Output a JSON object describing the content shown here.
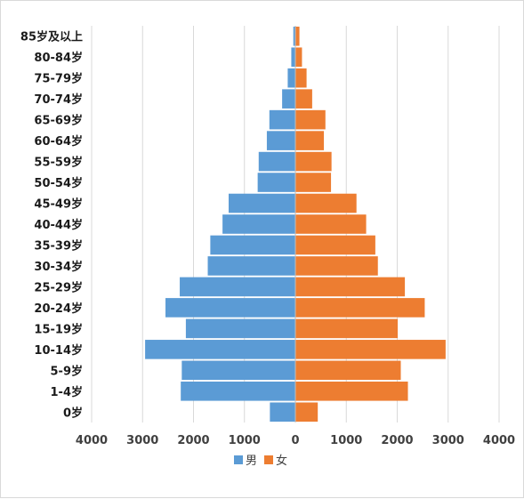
{
  "chart_data": {
    "type": "bar",
    "orientation": "horizontal",
    "categories": [
      "0岁",
      "1-4岁",
      "5-9岁",
      "10-14岁",
      "15-19岁",
      "20-24岁",
      "25-29岁",
      "30-34岁",
      "35-39岁",
      "40-44岁",
      "45-49岁",
      "50-54岁",
      "55-59岁",
      "60-64岁",
      "65-69岁",
      "70-74岁",
      "75-79岁",
      "80-84岁",
      "85岁及以上"
    ],
    "series": [
      {
        "name": "男",
        "color": "#5b9bd5",
        "values": [
          -500,
          -2250,
          -2230,
          -2950,
          -2150,
          -2550,
          -2270,
          -1720,
          -1670,
          -1430,
          -1310,
          -740,
          -720,
          -560,
          -510,
          -260,
          -150,
          -80,
          -40
        ]
      },
      {
        "name": "女",
        "color": "#ed7d31",
        "values": [
          440,
          2210,
          2070,
          2950,
          2010,
          2540,
          2150,
          1620,
          1570,
          1390,
          1200,
          700,
          710,
          560,
          590,
          330,
          220,
          130,
          80
        ]
      }
    ],
    "xlim": [
      -4000,
      4000
    ],
    "xticks": [
      -4000,
      -3000,
      -2000,
      -1000,
      0,
      1000,
      2000,
      3000,
      4000
    ],
    "xtick_labels": [
      "4000",
      "3000",
      "2000",
      "1000",
      "0",
      "1000",
      "2000",
      "3000",
      "4000"
    ],
    "grid": true,
    "legend_position": "bottom"
  },
  "legend": {
    "items": [
      {
        "label": "男",
        "color": "#5b9bd5"
      },
      {
        "label": "女",
        "color": "#ed7d31"
      }
    ]
  }
}
